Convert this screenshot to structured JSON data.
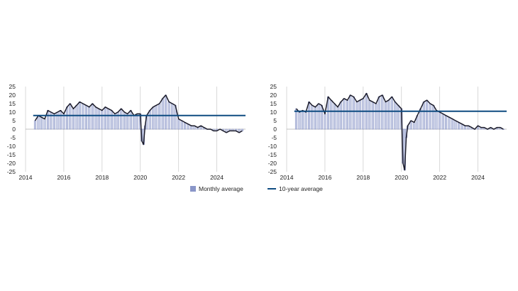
{
  "chart_data": [
    {
      "type": "bar",
      "series": [
        {
          "name": "Monthly average",
          "kind": "bar+line",
          "x": [
            2014.5,
            2014.67,
            2014.83,
            2015.0,
            2015.17,
            2015.33,
            2015.5,
            2015.67,
            2015.83,
            2016.0,
            2016.17,
            2016.33,
            2016.5,
            2016.67,
            2016.83,
            2017.0,
            2017.17,
            2017.33,
            2017.5,
            2017.67,
            2017.83,
            2018.0,
            2018.17,
            2018.33,
            2018.5,
            2018.67,
            2018.83,
            2019.0,
            2019.17,
            2019.33,
            2019.5,
            2019.67,
            2019.83,
            2020.0,
            2020.08,
            2020.17,
            2020.25,
            2020.33,
            2020.5,
            2020.67,
            2020.83,
            2021.0,
            2021.17,
            2021.33,
            2021.5,
            2021.67,
            2021.83,
            2022.0,
            2022.17,
            2022.33,
            2022.5,
            2022.67,
            2022.83,
            2023.0,
            2023.17,
            2023.33,
            2023.5,
            2023.67,
            2023.83,
            2024.0,
            2024.17,
            2024.33,
            2024.5,
            2024.67,
            2024.83,
            2025.0,
            2025.17,
            2025.33
          ],
          "values": [
            5,
            8,
            7,
            6,
            11,
            10,
            9,
            10,
            11,
            9,
            13,
            15,
            12,
            14,
            16,
            15,
            14,
            13,
            15,
            13,
            12,
            11,
            13,
            12,
            11,
            9,
            10,
            12,
            10,
            9,
            11,
            8,
            9,
            9,
            -7,
            -9,
            2,
            8,
            11,
            13,
            14,
            15,
            18,
            20,
            16,
            15,
            14,
            6,
            5,
            4,
            3,
            2,
            2,
            1,
            2,
            1,
            0,
            0,
            -1,
            -1,
            0,
            -1,
            -2,
            -1,
            -1,
            -1,
            -2,
            -1
          ]
        },
        {
          "name": "",
          "kind": "hline",
          "value": 8
        }
      ],
      "xlim": [
        2014,
        2025.5
      ],
      "ylim": [
        -25,
        25
      ],
      "x_ticks": [
        "2014",
        "2016",
        "2018",
        "2020",
        "2022",
        "2024"
      ],
      "y_ticks": [
        "25",
        "20",
        "15",
        "10",
        "5",
        "0",
        "-5",
        "-10",
        "-15",
        "-20",
        "-25"
      ],
      "grid": "vertical",
      "legend": "bottom-right"
    },
    {
      "type": "bar",
      "series": [
        {
          "name": "",
          "kind": "bar+line",
          "x": [
            2014.5,
            2014.67,
            2014.83,
            2015.0,
            2015.17,
            2015.33,
            2015.5,
            2015.67,
            2015.83,
            2016.0,
            2016.17,
            2016.33,
            2016.5,
            2016.67,
            2016.83,
            2017.0,
            2017.17,
            2017.33,
            2017.5,
            2017.67,
            2017.83,
            2018.0,
            2018.17,
            2018.33,
            2018.5,
            2018.67,
            2018.83,
            2019.0,
            2019.17,
            2019.33,
            2019.5,
            2019.67,
            2019.83,
            2020.0,
            2020.08,
            2020.17,
            2020.25,
            2020.33,
            2020.5,
            2020.67,
            2020.83,
            2021.0,
            2021.17,
            2021.33,
            2021.5,
            2021.67,
            2021.83,
            2022.0,
            2022.17,
            2022.33,
            2022.5,
            2022.67,
            2022.83,
            2023.0,
            2023.17,
            2023.33,
            2023.5,
            2023.67,
            2023.83,
            2024.0,
            2024.17,
            2024.33,
            2024.5,
            2024.67,
            2024.83,
            2025.0,
            2025.17,
            2025.33
          ],
          "values": [
            12,
            10,
            11,
            10,
            16,
            14,
            13,
            15,
            14,
            9,
            19,
            17,
            15,
            13,
            16,
            18,
            17,
            20,
            19,
            16,
            17,
            18,
            21,
            17,
            16,
            15,
            19,
            20,
            16,
            17,
            19,
            16,
            14,
            12,
            -20,
            -24,
            -5,
            2,
            5,
            4,
            8,
            12,
            16,
            17,
            15,
            14,
            11,
            10,
            9,
            8,
            7,
            6,
            5,
            4,
            3,
            2,
            2,
            1,
            0,
            2,
            1,
            1,
            0,
            1,
            0,
            1,
            1,
            0
          ]
        },
        {
          "name": "10-year average",
          "kind": "hline",
          "value": 10.5
        }
      ],
      "xlim": [
        2014,
        2025.5
      ],
      "ylim": [
        -25,
        25
      ],
      "x_ticks": [
        "2014",
        "2016",
        "2018",
        "2020",
        "2022",
        "2024"
      ],
      "y_ticks": [
        "25",
        "20",
        "15",
        "10",
        "5",
        "0",
        "-5",
        "-10",
        "-15",
        "-20",
        "-25"
      ],
      "grid": "vertical",
      "legend": "bottom-left"
    }
  ],
  "legend_left": {
    "label": "Monthly average"
  },
  "legend_right": {
    "label": "10-year average"
  },
  "colors": {
    "bar_fill": "#c9cfe6",
    "bar_stroke": "#7c88bf",
    "series_line": "#1c1c2a",
    "avg_line": "#0f4c81",
    "grid": "#d0d0d0",
    "axis": "#888888"
  }
}
